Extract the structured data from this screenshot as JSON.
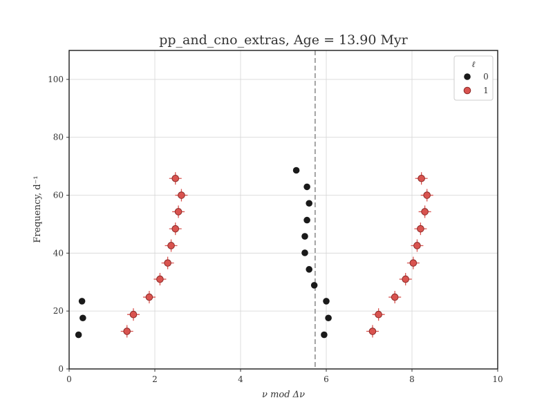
{
  "chart_data": {
    "type": "scatter",
    "title": "pp_and_cno_extras, Age = 13.90 Myr",
    "xlabel": "ν mod Δν",
    "ylabel": "Frequency, d⁻¹",
    "xlim": [
      0,
      10
    ],
    "ylim": [
      0,
      110
    ],
    "xticks": [
      0,
      2,
      4,
      6,
      8,
      10
    ],
    "yticks": [
      0,
      20,
      40,
      60,
      80,
      100
    ],
    "grid": true,
    "legend": {
      "title": "ℓ",
      "placement": "top-right"
    },
    "vline": {
      "x": 5.74,
      "style": "dashed",
      "color": "#999999"
    },
    "series": [
      {
        "name": "0",
        "color": "#1a1a1a",
        "points": [
          [
            0.22,
            11.8
          ],
          [
            0.32,
            17.6
          ],
          [
            0.3,
            23.4
          ],
          [
            5.95,
            11.8
          ],
          [
            6.05,
            17.6
          ],
          [
            6.0,
            23.4
          ],
          [
            5.72,
            28.9
          ],
          [
            5.6,
            34.4
          ],
          [
            5.5,
            40.1
          ],
          [
            5.5,
            45.8
          ],
          [
            5.55,
            51.4
          ],
          [
            5.6,
            57.2
          ],
          [
            5.55,
            62.9
          ],
          [
            5.3,
            68.6
          ]
        ]
      },
      {
        "name": "1",
        "color": "#d9534f",
        "points": [
          [
            1.35,
            13.0
          ],
          [
            1.5,
            18.8
          ],
          [
            1.87,
            24.8
          ],
          [
            2.12,
            31.0
          ],
          [
            2.3,
            36.6
          ],
          [
            2.38,
            42.6
          ],
          [
            2.48,
            48.4
          ],
          [
            2.55,
            54.3
          ],
          [
            2.62,
            60.0
          ],
          [
            2.48,
            65.8
          ],
          [
            7.08,
            13.0
          ],
          [
            7.22,
            18.8
          ],
          [
            7.6,
            24.8
          ],
          [
            7.85,
            31.0
          ],
          [
            8.03,
            36.6
          ],
          [
            8.12,
            42.6
          ],
          [
            8.2,
            48.4
          ],
          [
            8.3,
            54.3
          ],
          [
            8.35,
            60.0
          ],
          [
            8.22,
            65.8
          ]
        ]
      }
    ]
  }
}
